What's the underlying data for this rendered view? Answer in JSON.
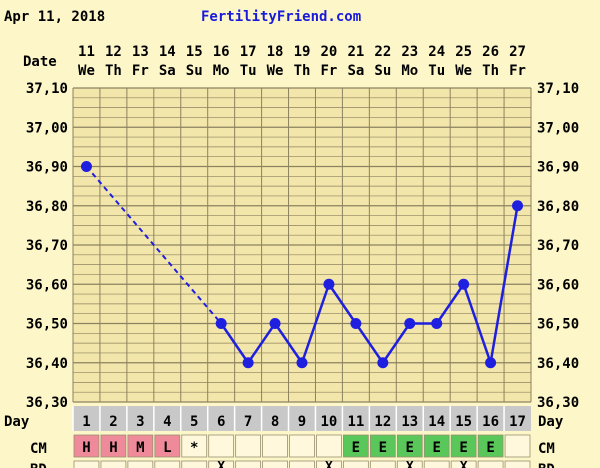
{
  "header": {
    "date": "Apr 11, 2018",
    "site": "FertilityFriend.com"
  },
  "labels": {
    "date_row": "Date",
    "day_row": "Day",
    "cm_row": "CM",
    "bottom_row_left": "BD",
    "bottom_row_right": "BD"
  },
  "colors": {
    "background": "#fcf6c8",
    "plot_background": "#f3e6aa",
    "grid": "#8c8260",
    "temp_line": "#1f1fe0",
    "day_band": "#c8c8c8",
    "cm_h": "#ef8a9a",
    "cm_m": "#ef8a9a",
    "cm_l": "#ef8a9a",
    "cm_e": "#59c759",
    "cm_empty": "#fff8dc"
  },
  "chart_data": {
    "type": "line",
    "title": "",
    "dates": [
      "11",
      "12",
      "13",
      "14",
      "15",
      "16",
      "17",
      "18",
      "19",
      "20",
      "21",
      "22",
      "23",
      "24",
      "25",
      "26",
      "27"
    ],
    "weekdays": [
      "We",
      "Th",
      "Fr",
      "Sa",
      "Su",
      "Mo",
      "Tu",
      "We",
      "Th",
      "Fr",
      "Sa",
      "Su",
      "Mo",
      "Tu",
      "We",
      "Th",
      "Fr"
    ],
    "cycle_days": [
      1,
      2,
      3,
      4,
      5,
      6,
      7,
      8,
      9,
      10,
      11,
      12,
      13,
      14,
      15,
      16,
      17
    ],
    "y_ticks": [
      "37,10",
      "37,00",
      "36,90",
      "36,80",
      "36,70",
      "36,60",
      "36,50",
      "36,40",
      "36,30"
    ],
    "ylim": [
      36.3,
      37.1
    ],
    "temperatures": [
      36.9,
      null,
      null,
      null,
      null,
      36.5,
      36.4,
      36.5,
      36.4,
      36.6,
      36.5,
      36.4,
      36.5,
      36.5,
      36.6,
      36.4,
      36.8
    ],
    "dashed_segment_days": [
      1,
      6
    ],
    "cervical_mucus": [
      "H",
      "H",
      "M",
      "L",
      "*",
      "",
      "",
      "",
      "",
      "",
      "E",
      "E",
      "E",
      "E",
      "E",
      "E",
      ""
    ],
    "bd_marks": [
      "",
      "",
      "",
      "",
      "",
      "X",
      "",
      "",
      "",
      "X",
      "",
      "",
      "X",
      "",
      "X",
      "",
      ""
    ],
    "grid": true
  }
}
